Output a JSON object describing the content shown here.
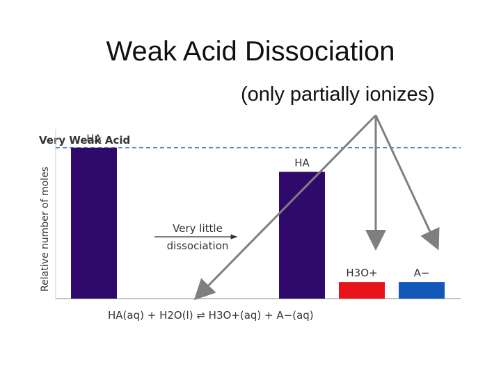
{
  "title": "Weak Acid Dissociation",
  "subtitle": "(only partially ionizes)",
  "chart_data": {
    "type": "bar",
    "title": "Very Weak Acid",
    "ylabel": "Relative number of moles",
    "categories": [
      "HA",
      "HA",
      "H3O+",
      "A−"
    ],
    "values": [
      100,
      84,
      11,
      11
    ],
    "colors": [
      "#2f0a6b",
      "#2f0a6b",
      "#e8141c",
      "#1158b8"
    ],
    "reference_line": 100,
    "ylim": [
      0,
      110
    ],
    "annotation": {
      "line1": "Very little",
      "line2": "dissociation"
    },
    "equation": "HA(aq) + H2O(l) ⇌ H3O+(aq) + A−(aq)"
  },
  "annotation_arrows": {
    "color": "#7f7f7f"
  }
}
